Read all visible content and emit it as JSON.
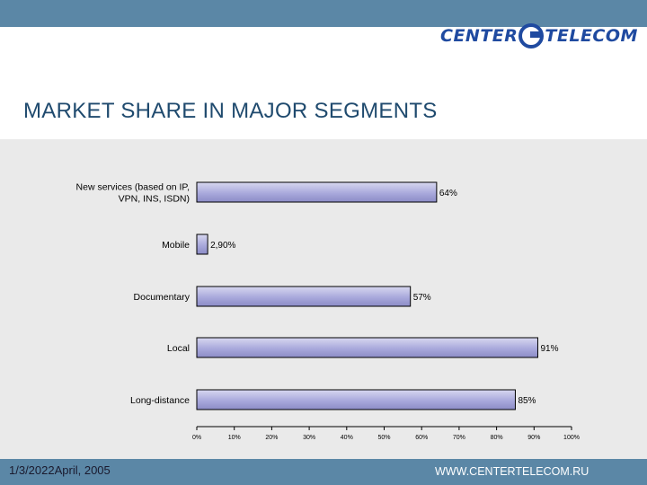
{
  "header": {
    "logo_left": "CENTER",
    "logo_right": "TELECOM"
  },
  "page_title": "MARKET SHARE IN MAJOR SEGMENTS",
  "colors": {
    "bar_fill": "#a9a9dc",
    "bar_stroke": "#000000",
    "bars_light": "#d8d8f0",
    "panel": "#eaeaea",
    "bars": "#5b87a6"
  },
  "chart_data": {
    "type": "bar",
    "orientation": "horizontal",
    "categories": [
      [
        "New services (based on IP,",
        "VPN, INS, ISDN)"
      ],
      [
        "Mobile"
      ],
      [
        "Documentary"
      ],
      [
        "Local"
      ],
      [
        "Long-distance"
      ]
    ],
    "values": [
      64,
      2.9,
      57,
      91,
      85
    ],
    "value_labels": [
      "64%",
      "2,90%",
      "57%",
      "91%",
      "85%"
    ],
    "x_ticks": [
      "0%",
      "10%",
      "20%",
      "30%",
      "40%",
      "50%",
      "60%",
      "70%",
      "80%",
      "90%",
      "100%"
    ],
    "xlim": [
      0,
      100
    ],
    "grid": false,
    "legend": "none"
  },
  "footer": {
    "date": "1/3/2022",
    "subdate": "April, 2005",
    "url": "WWW.CENTERTELECOM.RU"
  }
}
